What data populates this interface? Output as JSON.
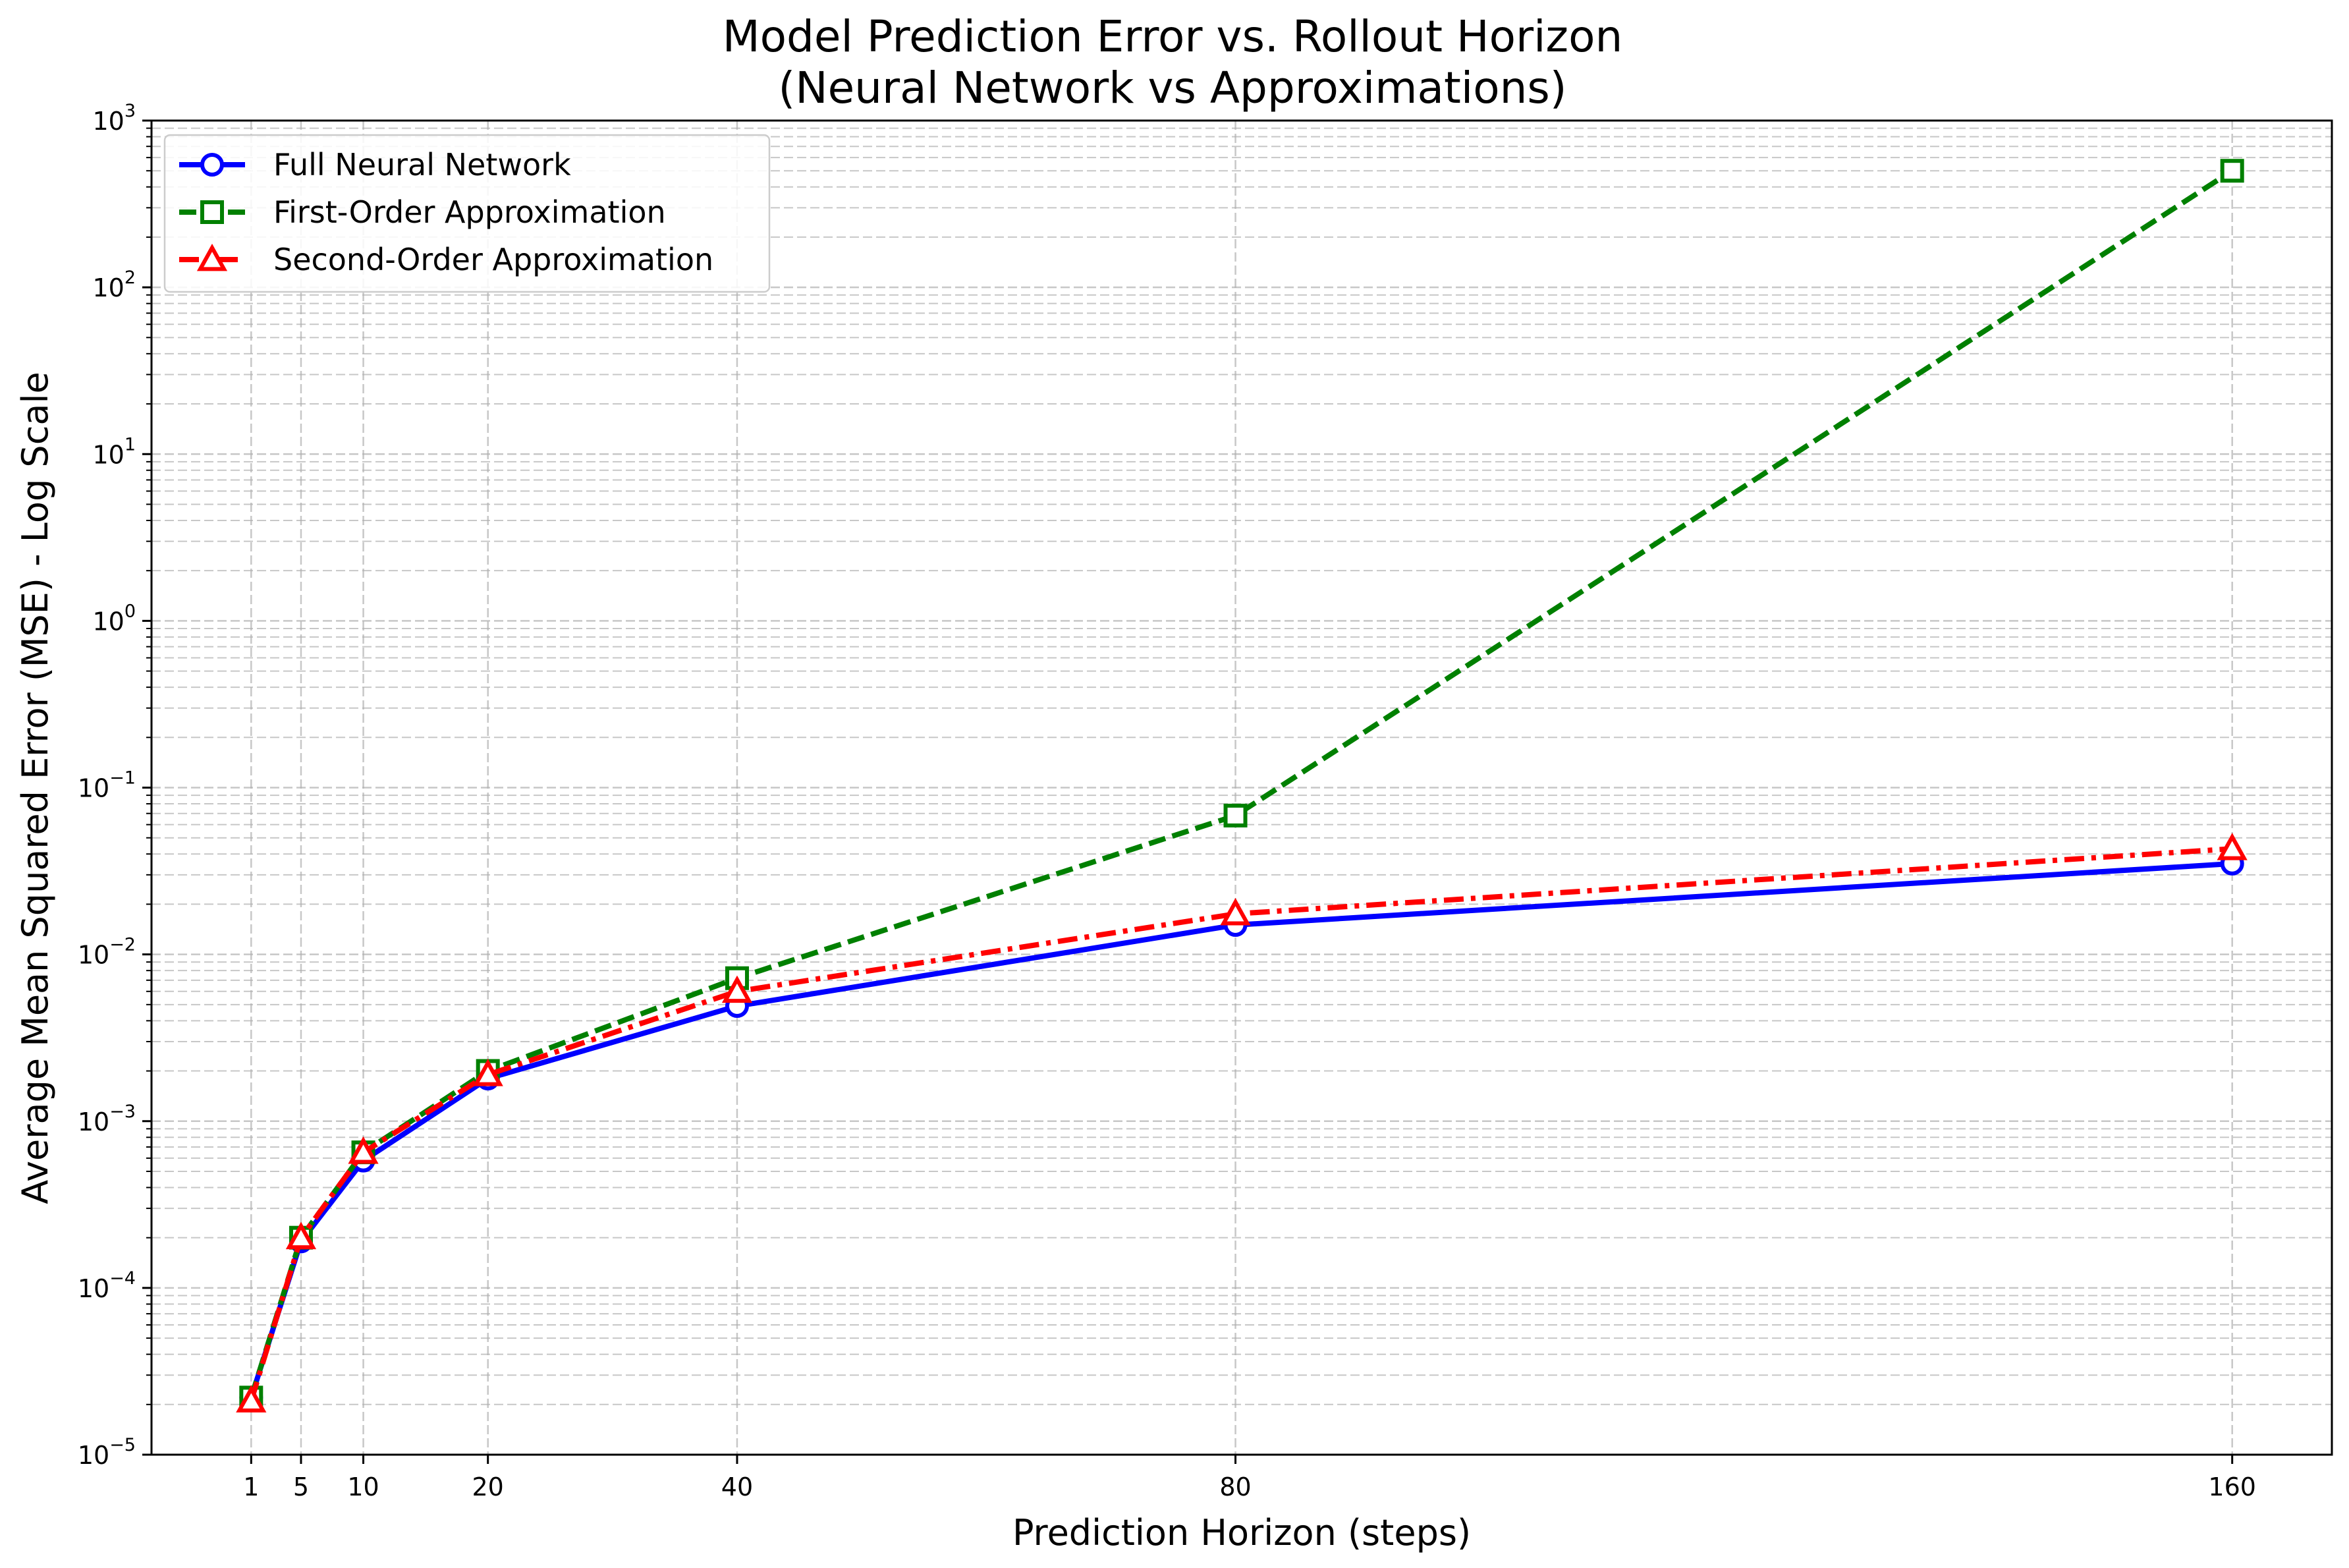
{
  "chart_data": {
    "type": "line",
    "title": "Model Prediction Error vs. Rollout Horizon",
    "subtitle": "(Neural Network vs Approximations)",
    "xlabel": "Prediction Horizon (steps)",
    "ylabel": "Average Mean Squared Error (MSE) - Log Scale",
    "x": [
      1,
      5,
      10,
      20,
      40,
      80,
      160
    ],
    "xticks": [
      "1",
      "5",
      "10",
      "20",
      "40",
      "80",
      "160"
    ],
    "xlim": [
      -7,
      168
    ],
    "ylim": [
      1e-05,
      1000
    ],
    "yscale": "log",
    "yticks": [
      {
        "base": "10",
        "exp": "3",
        "value": 1000
      },
      {
        "base": "10",
        "exp": "2",
        "value": 100
      },
      {
        "base": "10",
        "exp": "1",
        "value": 10
      },
      {
        "base": "10",
        "exp": "0",
        "value": 1
      },
      {
        "base": "10",
        "exp": "−1",
        "value": 0.1
      },
      {
        "base": "10",
        "exp": "−2",
        "value": 0.01
      },
      {
        "base": "10",
        "exp": "−3",
        "value": 0.001
      },
      {
        "base": "10",
        "exp": "−4",
        "value": 0.0001
      },
      {
        "base": "10",
        "exp": "−5",
        "value": 1e-05
      }
    ],
    "grid": true,
    "legend_position": "top-left",
    "series": [
      {
        "name": "Full Neural Network",
        "values": [
          2.2e-05,
          0.00019,
          0.00058,
          0.0018,
          0.0049,
          0.015,
          0.035
        ],
        "color": "#0000ff",
        "line_style": "solid",
        "marker": "circle"
      },
      {
        "name": "First-Order Approximation",
        "values": [
          2.2e-05,
          0.0002,
          0.00065,
          0.002,
          0.0072,
          0.068,
          500
        ],
        "color": "#008000",
        "line_style": "dashed",
        "marker": "square"
      },
      {
        "name": "Second-Order Approximation",
        "values": [
          2.1e-05,
          0.0002,
          0.00065,
          0.0019,
          0.006,
          0.0175,
          0.043
        ],
        "color": "#ff0000",
        "line_style": "dashdot",
        "marker": "triangle"
      }
    ]
  }
}
